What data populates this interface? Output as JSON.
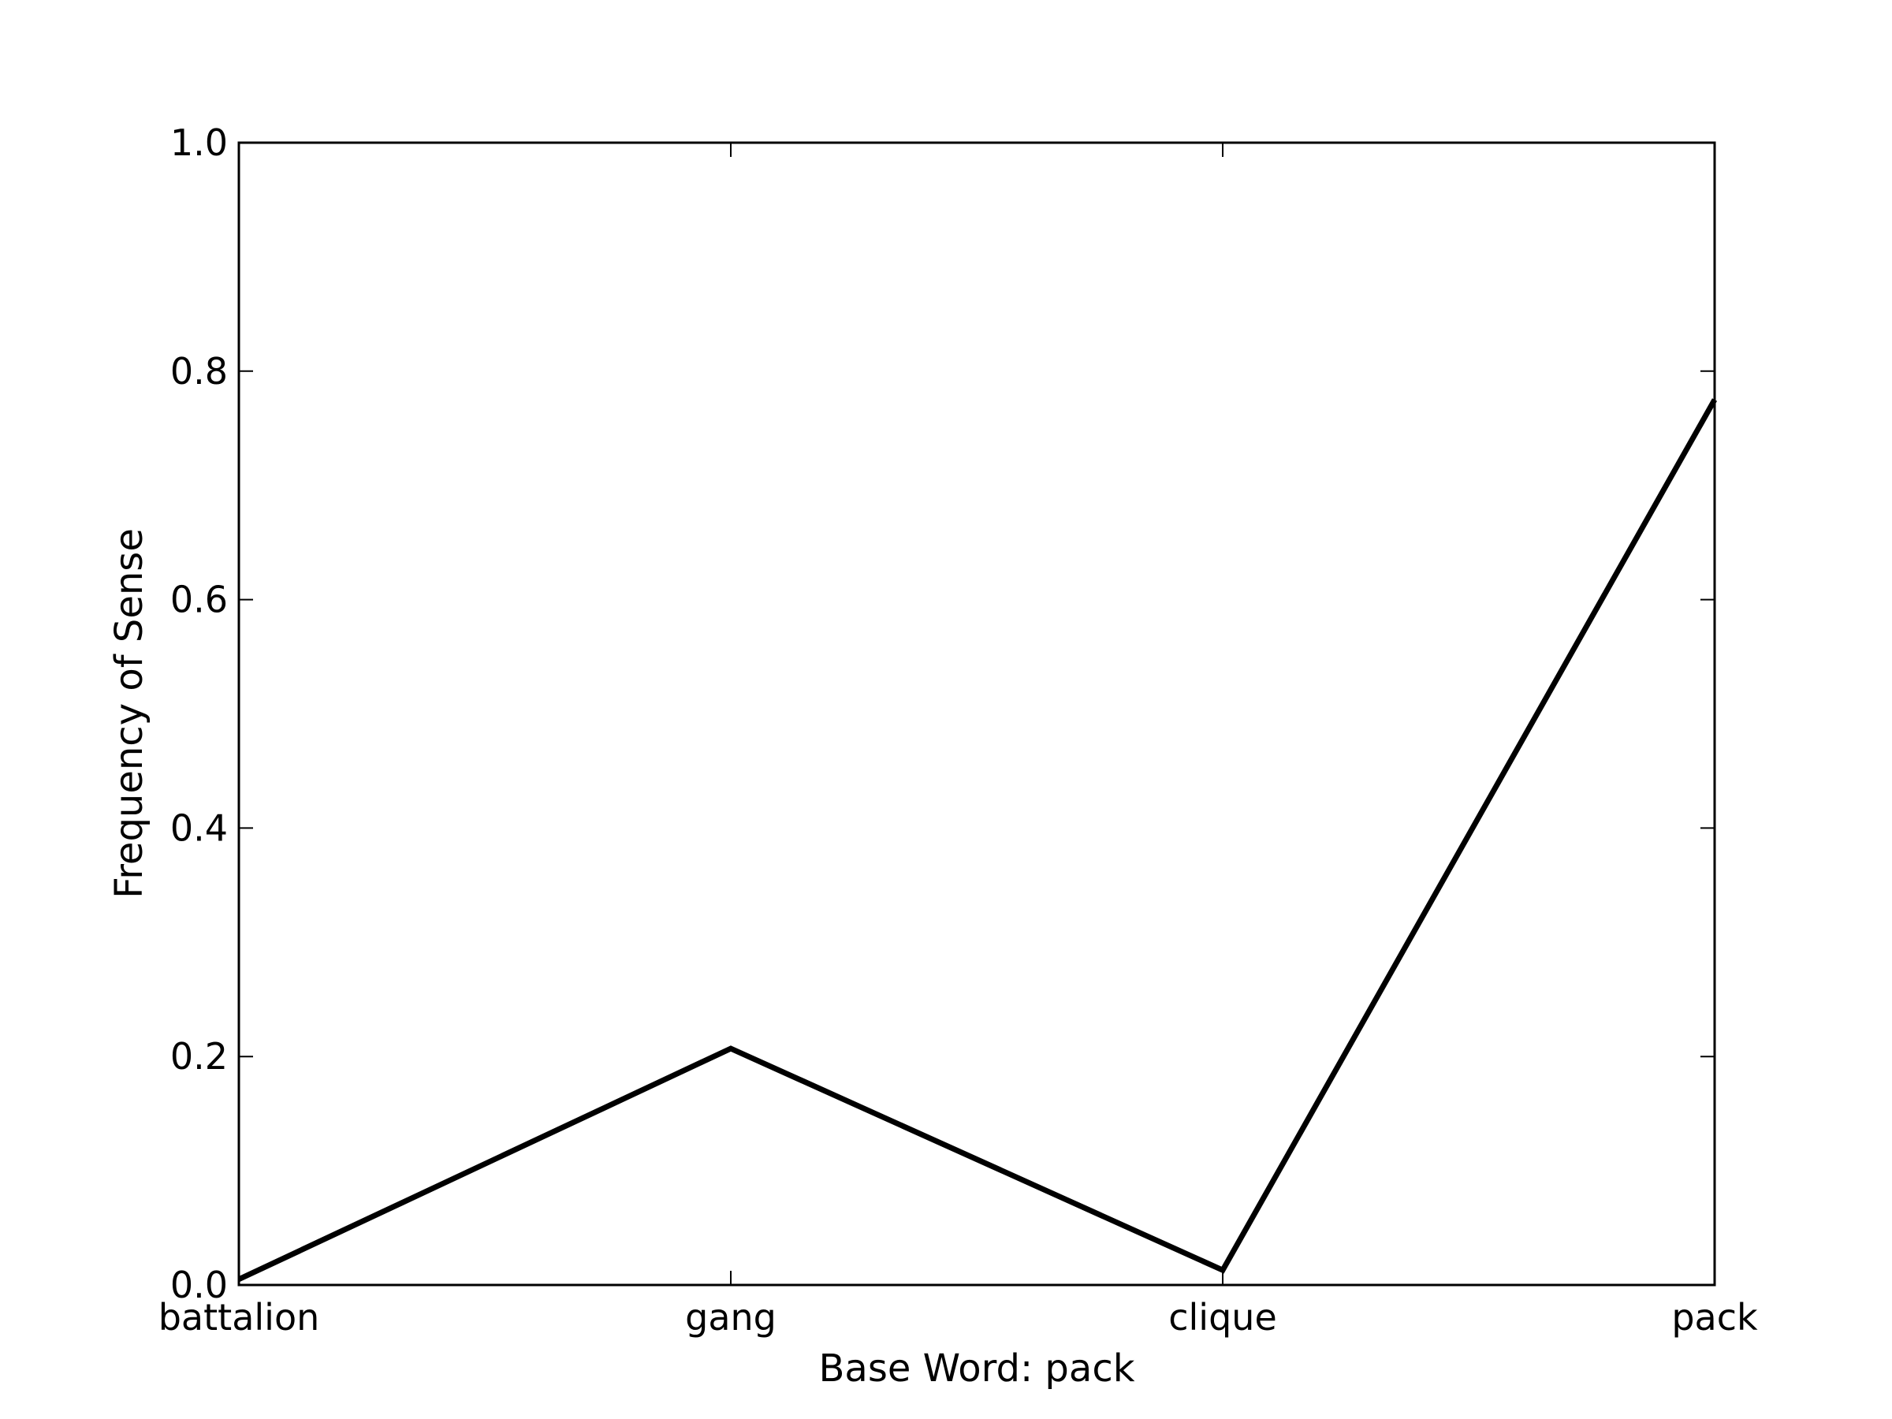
{
  "chart_data": {
    "type": "line",
    "categories": [
      "battalion",
      "gang",
      "clique",
      "pack"
    ],
    "series": [
      {
        "values": [
          0.005,
          0.207,
          0.013,
          0.775
        ]
      }
    ],
    "xlabel": "Base Word: pack",
    "ylabel": "Frequency of Sense",
    "ylim": [
      0.0,
      1.0
    ],
    "yticks": [
      "0.0",
      "0.2",
      "0.4",
      "0.6",
      "0.8",
      "1.0"
    ],
    "grid": false,
    "line_color": "#000000"
  }
}
